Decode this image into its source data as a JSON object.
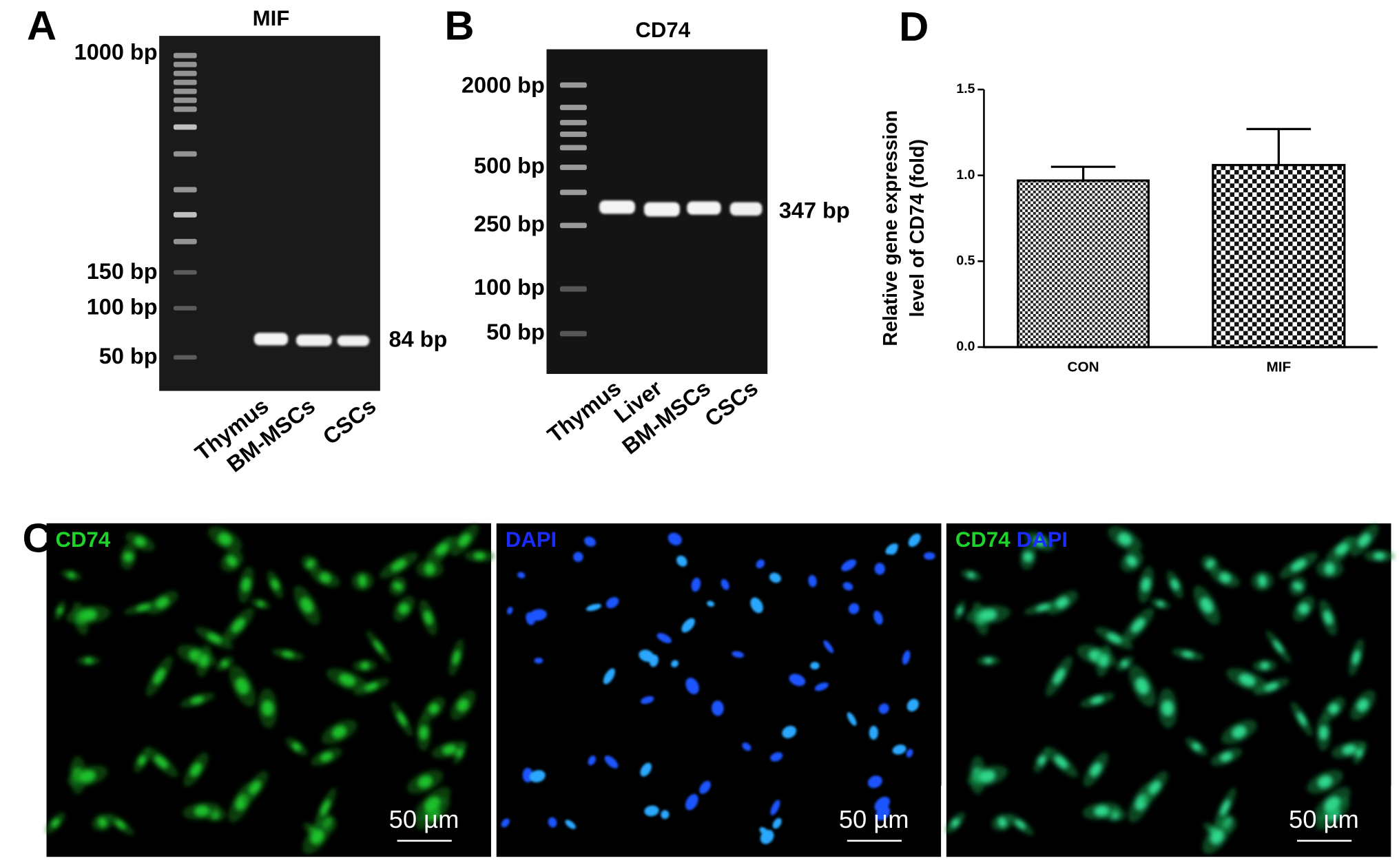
{
  "panels": [
    {
      "label": "A",
      "title": "MIF",
      "markers": [
        "1000 bp",
        "150 bp",
        "100 bp",
        "50 bp"
      ],
      "band_label": "84 bp",
      "lanes": [
        "Thymus",
        "BM-MSCs",
        "CSCs"
      ]
    },
    {
      "label": "B",
      "title": "CD74",
      "markers": [
        "2000 bp",
        "500 bp",
        "250 bp",
        "100 bp",
        "50 bp"
      ],
      "band_label": "347 bp",
      "lanes": [
        "Thymus",
        "Liver",
        "BM-MSCs",
        "CSCs"
      ]
    },
    {
      "label": "C",
      "images": [
        {
          "labels": [
            "CD74"
          ],
          "scale": "50 µm"
        },
        {
          "labels": [
            "DAPI"
          ],
          "scale": "50 µm"
        },
        {
          "labels": [
            "CD74",
            "DAPI"
          ],
          "scale": "50 µm"
        }
      ]
    }
  ],
  "chart_data": {
    "type": "bar",
    "panel_label": "D",
    "ylabel": [
      "Relative gene expression",
      "level of CD74 (fold)"
    ],
    "categories": [
      "CON",
      "MIF"
    ],
    "values": [
      0.97,
      1.06
    ],
    "errors": [
      0.08,
      0.21
    ],
    "ylim": [
      0,
      1.5
    ],
    "yticks": [
      {
        "value": 0,
        "label": "0.0"
      },
      0.5,
      {
        "value": 1,
        "label": "1.0"
      },
      1.5
    ]
  }
}
